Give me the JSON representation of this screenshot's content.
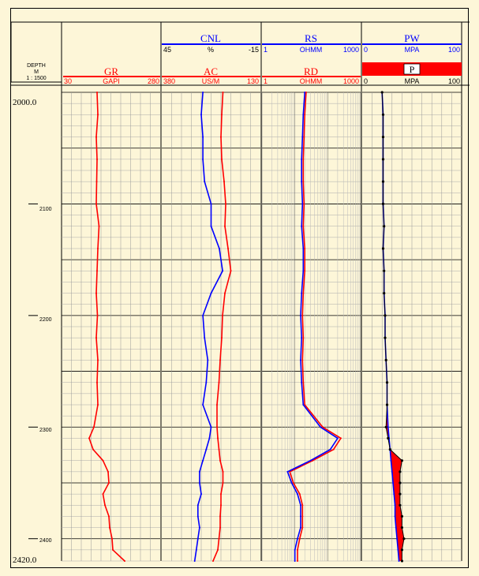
{
  "depth_header": {
    "title": "DEPTH",
    "unit": "M",
    "scale": "1 : 1500"
  },
  "depth_labels": {
    "top": "2000.0",
    "bottom": "2420.0",
    "ticks": [
      "2100",
      "2200",
      "2300",
      "2400"
    ]
  },
  "tracks": {
    "gr": {
      "name": "GR",
      "min": "30",
      "unit": "GAPI",
      "max": "280"
    },
    "cnl": {
      "name": "CNL",
      "min": "45",
      "unit": "%",
      "max": "-15"
    },
    "ac": {
      "name": "AC",
      "min": "380",
      "unit": "US/M",
      "max": "130"
    },
    "rs": {
      "name": "RS",
      "min": "1",
      "unit": "OHMM",
      "max": "1000"
    },
    "rd": {
      "name": "RD",
      "min": "1",
      "unit": "OHMM",
      "max": "1000"
    },
    "pw": {
      "name": "PW",
      "min": "0",
      "unit": "MPA",
      "max": "100"
    },
    "p": {
      "name": "P",
      "min": "0",
      "unit": "MPA",
      "max": "100"
    }
  },
  "colors": {
    "red": "#ff0000",
    "blue": "#0000ff",
    "black": "#000000",
    "background": "#fdf6d8"
  },
  "chart_data": {
    "type": "line",
    "y_axis": {
      "label": "DEPTH",
      "unit": "M",
      "range": [
        2000,
        2420
      ],
      "ticks": [
        2100,
        2200,
        2300,
        2400
      ]
    },
    "depth": [
      2000,
      2020,
      2040,
      2060,
      2080,
      2100,
      2120,
      2140,
      2160,
      2180,
      2200,
      2220,
      2240,
      2260,
      2280,
      2300,
      2310,
      2320,
      2330,
      2340,
      2350,
      2360,
      2370,
      2380,
      2390,
      2400,
      2410,
      2420
    ],
    "series": [
      {
        "name": "GR",
        "unit": "GAPI",
        "range": [
          30,
          280
        ],
        "values": [
          120,
          122,
          118,
          120,
          119,
          118,
          125,
          122,
          120,
          118,
          121,
          118,
          122,
          120,
          122,
          112,
          100,
          110,
          135,
          148,
          150,
          135,
          140,
          150,
          152,
          158,
          160,
          190
        ]
      },
      {
        "name": "CNL",
        "unit": "%",
        "range": [
          45,
          -15
        ],
        "values": [
          20,
          21,
          20,
          20,
          19,
          15,
          15,
          10,
          8,
          15,
          20,
          19,
          17,
          18,
          20,
          15,
          16,
          18,
          20,
          22,
          22,
          21,
          23,
          23,
          22,
          23,
          24,
          25
        ]
      },
      {
        "name": "AC",
        "unit": "US/M",
        "range": [
          380,
          130
        ],
        "values": [
          225,
          228,
          230,
          228,
          222,
          218,
          220,
          212,
          205,
          220,
          226,
          228,
          232,
          235,
          240,
          240,
          238,
          235,
          232,
          225,
          225,
          230,
          230,
          232,
          232,
          235,
          238,
          250
        ]
      },
      {
        "name": "RS",
        "unit": "OHMM",
        "range": [
          1,
          1000
        ],
        "values": [
          20,
          18,
          17,
          16,
          16,
          17,
          16,
          18,
          18,
          16,
          15,
          16,
          15,
          16,
          18,
          60,
          200,
          120,
          30,
          6,
          8,
          12,
          15,
          15,
          15,
          12,
          10,
          10
        ]
      },
      {
        "name": "RD",
        "unit": "OHMM",
        "range": [
          1,
          1000
        ],
        "values": [
          22,
          20,
          19,
          18,
          18,
          19,
          18,
          20,
          20,
          18,
          17,
          18,
          17,
          18,
          20,
          70,
          250,
          150,
          35,
          7,
          9,
          14,
          17,
          17,
          17,
          14,
          12,
          12
        ]
      },
      {
        "name": "PW",
        "unit": "MPA",
        "range": [
          0,
          100
        ],
        "values": [
          20,
          21,
          21,
          21,
          21,
          21,
          22,
          21,
          22,
          22,
          23,
          23,
          24,
          25,
          25,
          26,
          27,
          28,
          29,
          30,
          31,
          32,
          33,
          33,
          34,
          35,
          36,
          37
        ]
      },
      {
        "name": "P",
        "unit": "MPA",
        "range": [
          0,
          100
        ],
        "values": [
          20,
          21,
          21,
          21,
          21,
          21,
          22,
          21,
          22,
          22,
          23,
          23,
          24,
          25,
          25,
          24,
          26,
          28,
          40,
          38,
          38,
          38,
          38,
          40,
          40,
          42,
          40,
          40
        ]
      }
    ]
  }
}
